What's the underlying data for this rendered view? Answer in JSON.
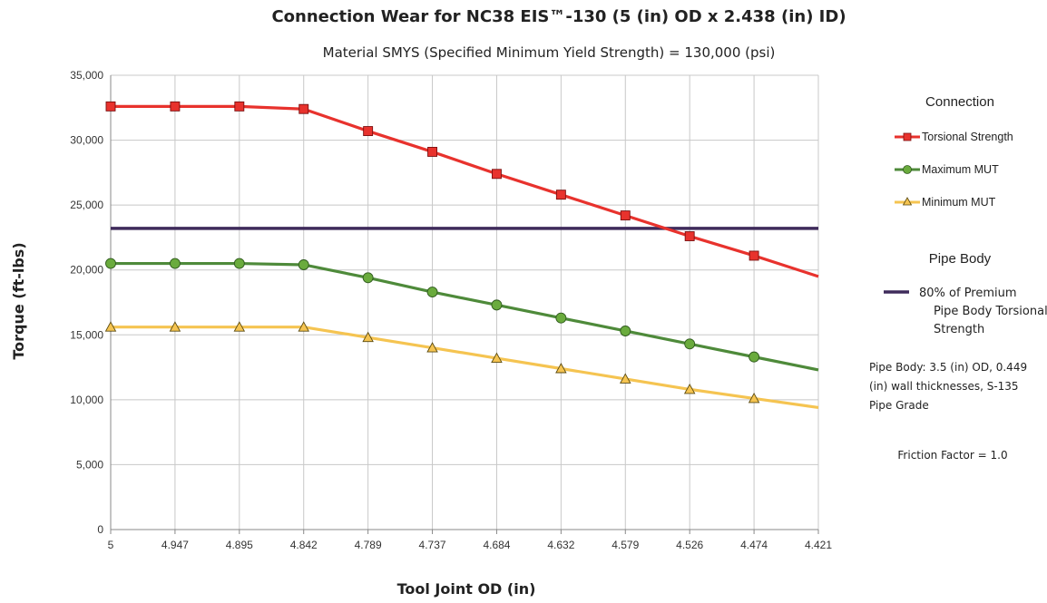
{
  "chart_data": {
    "type": "line",
    "title": "Connection Wear for NC38 EIS™-130 (5 (in) OD x 2.438 (in) ID)",
    "subtitle": "Material SMYS (Specified Minimum Yield Strength) = 130,000 (psi)",
    "xlabel": "Tool Joint OD  (in)",
    "ylabel": "Torque  (ft-lbs)",
    "categories": [
      "5",
      "4.947",
      "4.895",
      "4.842",
      "4.789",
      "4.737",
      "4.684",
      "4.632",
      "4.579",
      "4.526",
      "4.474",
      "4.421"
    ],
    "ylim": [
      0,
      35000
    ],
    "yticks": [
      0,
      5000,
      10000,
      15000,
      20000,
      25000,
      30000,
      35000
    ],
    "ytick_labels": [
      "0",
      "5,000",
      "10,000",
      "15,000",
      "20,000",
      "25,000",
      "30,000",
      "35,000"
    ],
    "grid": true,
    "series": [
      {
        "name": "Torsional Strength",
        "color": "#e8322d",
        "marker": "square",
        "values": [
          32600,
          32600,
          32600,
          32400,
          30700,
          29100,
          27400,
          25800,
          24200,
          22600,
          21100,
          19500
        ]
      },
      {
        "name": "Maximum MUT",
        "color": "#4e8a3a",
        "marker": "circle",
        "values": [
          20500,
          20500,
          20500,
          20400,
          19400,
          18300,
          17300,
          16300,
          15300,
          14300,
          13300,
          12300
        ]
      },
      {
        "name": "Minimum MUT",
        "color": "#f5c451",
        "marker": "triangle",
        "values": [
          15600,
          15600,
          15600,
          15600,
          14800,
          14000,
          13200,
          12400,
          11600,
          10800,
          10100,
          9400
        ]
      },
      {
        "name": "80% of Premium Pipe Body Torsional Strength",
        "color": "#3f2b5b",
        "marker": "none",
        "values": [
          23200,
          23200,
          23200,
          23200,
          23200,
          23200,
          23200,
          23200,
          23200,
          23200,
          23200,
          23200
        ]
      }
    ],
    "legend": {
      "placement": "right",
      "connection_header": "Connection",
      "pipe_header": "Pipe Body",
      "pipe_label_lines": [
        "80% of Premium",
        "Pipe Body Torsional",
        "Strength"
      ]
    },
    "annotations": {
      "pipe_body_lines": [
        "Pipe Body: 3.5 (in) OD, 0.449",
        "(in) wall thicknesses,  S-135",
        "Pipe Grade"
      ],
      "friction": "Friction Factor = 1.0"
    }
  }
}
